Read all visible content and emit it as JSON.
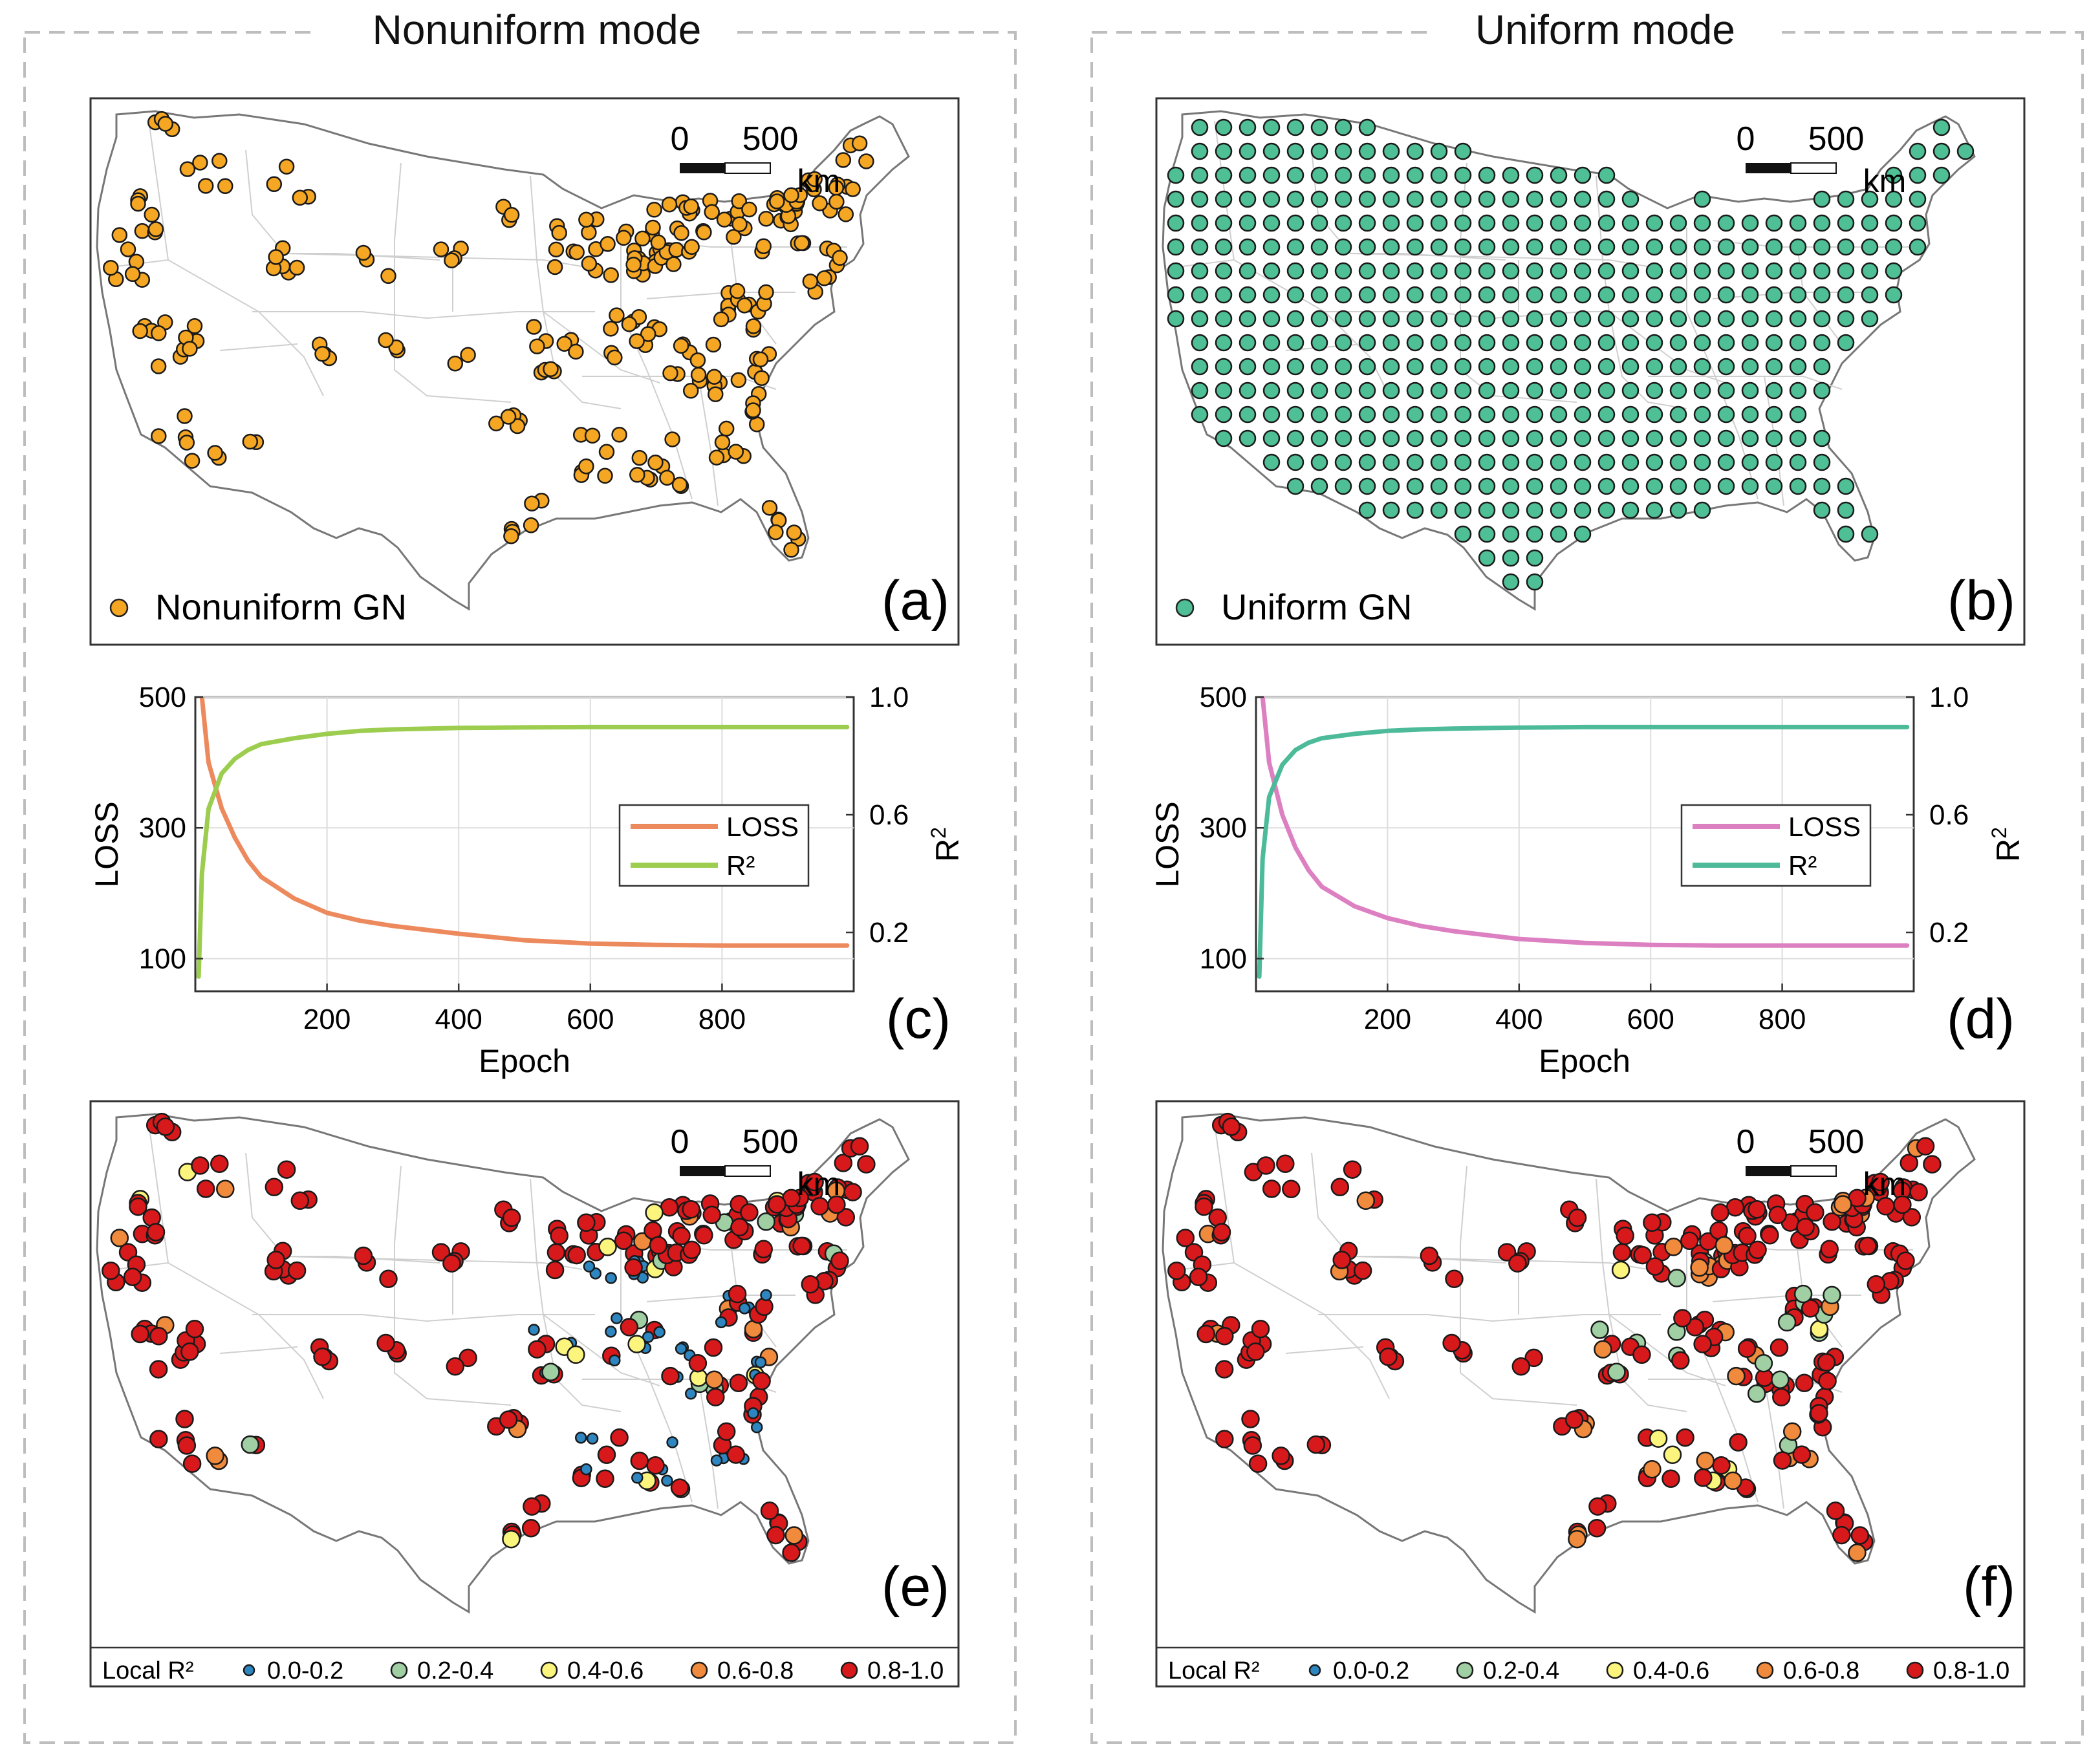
{
  "columns": [
    {
      "title": "Nonuniform mode"
    },
    {
      "title": "Uniform mode"
    }
  ],
  "colors": {
    "nonuniform_station": "#f5a623",
    "uniform_station": "#4fbf95",
    "loss_left": "#ec8a5e",
    "r2_left": "#9ccd4f",
    "loss_right": "#dd80c2",
    "r2_right": "#4dbb99",
    "bins": [
      "#2e86c1",
      "#9fcfa2",
      "#fbf57e",
      "#f08a3c",
      "#d7191c"
    ],
    "frame": "#bdbdbd",
    "map_outline": "#777777",
    "map_inner": "#cfcfcf"
  },
  "scalebar": {
    "start": "0",
    "end": "500",
    "unit": "km"
  },
  "map_a": {
    "panel_label": "(a)",
    "legend": "Nonuniform GN",
    "legend_color": "#f5a623"
  },
  "map_b": {
    "panel_label": "(b)",
    "legend": "Uniform GN",
    "legend_color": "#4fbf95"
  },
  "map_e": {
    "panel_label": "(e)"
  },
  "map_f": {
    "panel_label": "(f)"
  },
  "r2_legend": {
    "title": "Local R²",
    "bins": [
      "0.0-0.2",
      "0.2-0.4",
      "0.4-0.6",
      "0.6-0.8",
      "0.8-1.0"
    ]
  },
  "chart_data": [
    {
      "type": "line",
      "panel_label": "(c)",
      "xlabel": "Epoch",
      "ylabel_left": "LOSS",
      "ylabel_right": "R2",
      "xlim": [
        0,
        1000
      ],
      "xticks": [
        "200",
        "400",
        "600",
        "800"
      ],
      "ylim_left": [
        50,
        500
      ],
      "yticks_left": [
        "100",
        "300",
        "500"
      ],
      "ylim_right": [
        0.0,
        1.0
      ],
      "yticks_right": [
        "0.2",
        "0.6",
        "1.0"
      ],
      "grid": true,
      "legend_position": "middle-right",
      "series": [
        {
          "name": "LOSS",
          "axis": "left",
          "x": [
            10,
            20,
            40,
            60,
            80,
            100,
            150,
            200,
            250,
            300,
            400,
            500,
            600,
            700,
            800,
            900,
            990
          ],
          "values": [
            500,
            400,
            330,
            285,
            250,
            225,
            192,
            170,
            158,
            150,
            138,
            128,
            123,
            121,
            120,
            120,
            120
          ]
        },
        {
          "name": "R²",
          "axis": "right",
          "x": [
            5,
            10,
            20,
            40,
            60,
            80,
            100,
            150,
            200,
            250,
            300,
            400,
            500,
            600,
            800,
            990
          ],
          "values": [
            0.05,
            0.4,
            0.62,
            0.74,
            0.79,
            0.82,
            0.84,
            0.86,
            0.875,
            0.885,
            0.89,
            0.895,
            0.897,
            0.898,
            0.898,
            0.898
          ]
        }
      ]
    },
    {
      "type": "line",
      "panel_label": "(d)",
      "xlabel": "Epoch",
      "ylabel_left": "LOSS",
      "ylabel_right": "R2",
      "xlim": [
        0,
        1000
      ],
      "xticks": [
        "200",
        "400",
        "600",
        "800"
      ],
      "ylim_left": [
        50,
        500
      ],
      "yticks_left": [
        "100",
        "300",
        "500"
      ],
      "ylim_right": [
        0.0,
        1.0
      ],
      "yticks_right": [
        "0.2",
        "0.6",
        "1.0"
      ],
      "grid": true,
      "legend_position": "middle-right",
      "series": [
        {
          "name": "LOSS",
          "axis": "left",
          "x": [
            10,
            20,
            40,
            60,
            80,
            100,
            150,
            200,
            250,
            300,
            400,
            500,
            600,
            700,
            800,
            900,
            990
          ],
          "values": [
            500,
            400,
            320,
            270,
            235,
            210,
            180,
            162,
            150,
            142,
            130,
            124,
            121,
            120,
            120,
            120,
            120
          ]
        },
        {
          "name": "R²",
          "axis": "right",
          "x": [
            5,
            10,
            20,
            40,
            60,
            80,
            100,
            150,
            200,
            250,
            300,
            400,
            500,
            600,
            800,
            990
          ],
          "values": [
            0.05,
            0.45,
            0.66,
            0.77,
            0.82,
            0.845,
            0.86,
            0.875,
            0.885,
            0.89,
            0.893,
            0.896,
            0.898,
            0.898,
            0.898,
            0.898
          ]
        }
      ]
    }
  ]
}
